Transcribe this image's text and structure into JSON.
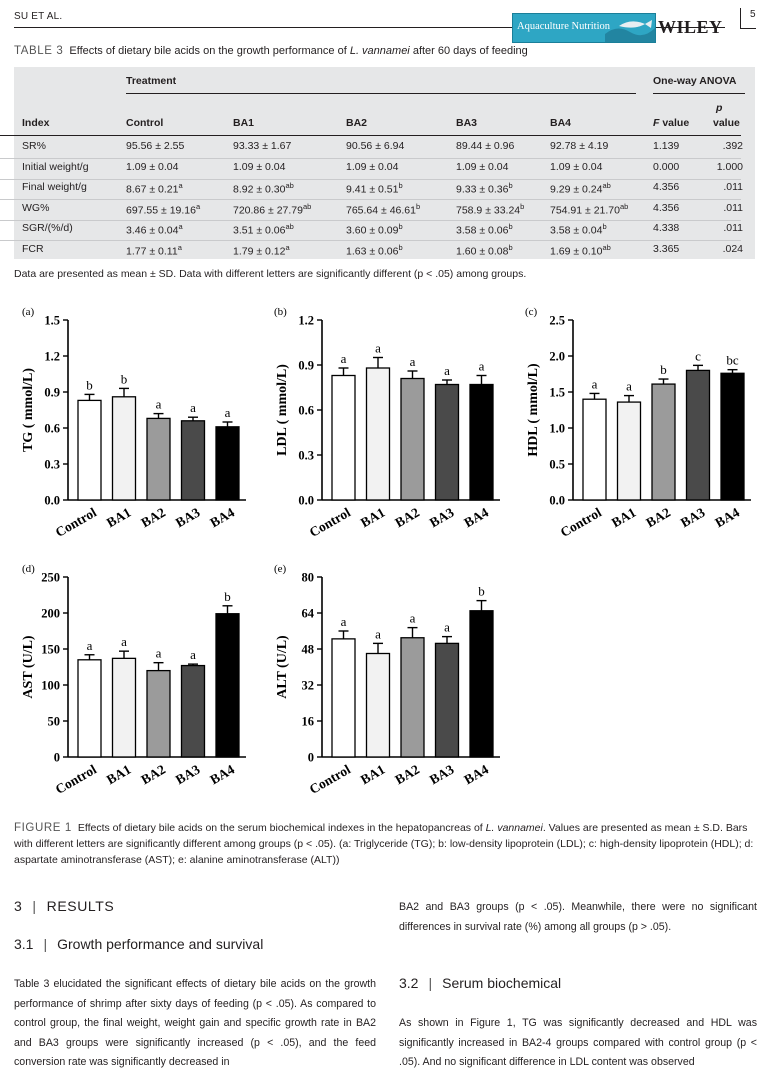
{
  "header": {
    "running_head": "SU ET AL.",
    "journal": "Aquaculture Nutrition",
    "publisher": "WILEY",
    "page": "5"
  },
  "table": {
    "label": "TABLE 3",
    "title": "Effects of dietary bile acids on the growth performance of L. vannamei after 60 days of feeding",
    "group_treatment": "Treatment",
    "group_anova": "One-way ANOVA",
    "columns": [
      "Index",
      "Control",
      "BA1",
      "BA2",
      "BA3",
      "BA4",
      "F value",
      "p value"
    ],
    "rows": [
      {
        "index": "SR%",
        "control": "95.56 ± 2.55",
        "ba1": "93.33 ± 1.67",
        "ba2": "90.56 ± 6.94",
        "ba3": "89.44 ± 0.96",
        "ba4": "92.78 ± 4.19",
        "f": "1.139",
        "p": ".392"
      },
      {
        "index": "Initial weight/g",
        "control": "1.09 ± 0.04",
        "ba1": "1.09 ± 0.04",
        "ba2": "1.09 ± 0.04",
        "ba3": "1.09 ± 0.04",
        "ba4": "1.09 ± 0.04",
        "f": "0.000",
        "p": "1.000"
      },
      {
        "index": "Final weight/g",
        "control": "8.67 ± 0.21",
        "control_sup": "a",
        "ba1": "8.92 ± 0.30",
        "ba1_sup": "ab",
        "ba2": "9.41 ± 0.51",
        "ba2_sup": "b",
        "ba3": "9.33 ± 0.36",
        "ba3_sup": "b",
        "ba4": "9.29 ± 0.24",
        "ba4_sup": "ab",
        "f": "4.356",
        "p": ".011"
      },
      {
        "index": "WG%",
        "control": "697.55 ± 19.16",
        "control_sup": "a",
        "ba1": "720.86 ± 27.79",
        "ba1_sup": "ab",
        "ba2": "765.64 ± 46.61",
        "ba2_sup": "b",
        "ba3": "758.9 ± 33.24",
        "ba3_sup": "b",
        "ba4": "754.91 ± 21.70",
        "ba4_sup": "ab",
        "f": "4.356",
        "p": ".011"
      },
      {
        "index": "SGR/(%/d)",
        "control": "3.46 ± 0.04",
        "control_sup": "a",
        "ba1": "3.51 ± 0.06",
        "ba1_sup": "ab",
        "ba2": "3.60 ± 0.09",
        "ba2_sup": "b",
        "ba3": "3.58 ± 0.06",
        "ba3_sup": "b",
        "ba4": "3.58 ± 0.04",
        "ba4_sup": "b",
        "f": "4.338",
        "p": ".011"
      },
      {
        "index": "FCR",
        "control": "1.77 ± 0.11",
        "control_sup": "a",
        "ba1": "1.79 ± 0.12",
        "ba1_sup": "a",
        "ba2": "1.63 ± 0.06",
        "ba2_sup": "b",
        "ba3": "1.60 ± 0.08",
        "ba3_sup": "b",
        "ba4": "1.69 ± 0.10",
        "ba4_sup": "ab",
        "f": "3.365",
        "p": ".024"
      }
    ],
    "note": "Data are presented as mean ± SD. Data with different letters are significantly different (p < .05) among groups."
  },
  "chart_data": [
    {
      "type": "bar",
      "panel": "(a)",
      "categories": [
        "Control",
        "BA1",
        "BA2",
        "BA3",
        "BA4"
      ],
      "values": [
        0.83,
        0.86,
        0.68,
        0.66,
        0.61
      ],
      "errors": [
        0.05,
        0.07,
        0.04,
        0.03,
        0.04
      ],
      "letters": [
        "b",
        "b",
        "a",
        "a",
        "a"
      ],
      "ylabel": "TG ( mmol/L)",
      "ylim": [
        0,
        1.5
      ],
      "yticks": [
        "0.0",
        "0.3",
        "0.6",
        "0.9",
        "1.2",
        "1.5"
      ],
      "colors": [
        "#ffffff",
        "#f2f2f2",
        "#9b9b9b",
        "#4a4a4a",
        "#000000"
      ]
    },
    {
      "type": "bar",
      "panel": "(b)",
      "categories": [
        "Control",
        "BA1",
        "BA2",
        "BA3",
        "BA4"
      ],
      "values": [
        0.83,
        0.88,
        0.81,
        0.77,
        0.77
      ],
      "errors": [
        0.05,
        0.07,
        0.05,
        0.03,
        0.06
      ],
      "letters": [
        "a",
        "a",
        "a",
        "a",
        "a"
      ],
      "ylabel": "LDL ( mmol/L)",
      "ylim": [
        0,
        1.2
      ],
      "yticks": [
        "0.0",
        "0.3",
        "0.6",
        "0.9",
        "1.2"
      ],
      "colors": [
        "#ffffff",
        "#f2f2f2",
        "#9b9b9b",
        "#4a4a4a",
        "#000000"
      ]
    },
    {
      "type": "bar",
      "panel": "(c)",
      "categories": [
        "Control",
        "BA1",
        "BA2",
        "BA3",
        "BA4"
      ],
      "values": [
        1.4,
        1.36,
        1.61,
        1.8,
        1.76
      ],
      "errors": [
        0.08,
        0.09,
        0.07,
        0.07,
        0.05
      ],
      "letters": [
        "a",
        "a",
        "b",
        "c",
        "bc"
      ],
      "ylabel": "HDL ( mmol/L)",
      "ylim": [
        0,
        2.5
      ],
      "yticks": [
        "0.0",
        "0.5",
        "1.0",
        "1.5",
        "2.0",
        "2.5"
      ],
      "colors": [
        "#ffffff",
        "#f2f2f2",
        "#9b9b9b",
        "#4a4a4a",
        "#000000"
      ]
    },
    {
      "type": "bar",
      "panel": "(d)",
      "categories": [
        "Control",
        "BA1",
        "BA2",
        "BA3",
        "BA4"
      ],
      "values": [
        135,
        137,
        120,
        127,
        199
      ],
      "errors": [
        7,
        10,
        11,
        2,
        11
      ],
      "letters": [
        "a",
        "a",
        "a",
        "a",
        "b"
      ],
      "ylabel": "AST (U/L)",
      "ylim": [
        0,
        250
      ],
      "yticks": [
        "0",
        "50",
        "100",
        "150",
        "200",
        "250"
      ],
      "colors": [
        "#ffffff",
        "#f2f2f2",
        "#9b9b9b",
        "#4a4a4a",
        "#000000"
      ]
    },
    {
      "type": "bar",
      "panel": "(e)",
      "categories": [
        "Control",
        "BA1",
        "BA2",
        "BA3",
        "BA4"
      ],
      "values": [
        52.5,
        46,
        53,
        50.5,
        65
      ],
      "errors": [
        3.5,
        4.5,
        4.5,
        3,
        4.5
      ],
      "letters": [
        "a",
        "a",
        "a",
        "a",
        "b"
      ],
      "ylabel": "ALT (U/L)",
      "ylim": [
        0,
        80
      ],
      "yticks": [
        "0",
        "16",
        "32",
        "48",
        "64",
        "80"
      ],
      "colors": [
        "#ffffff",
        "#f2f2f2",
        "#9b9b9b",
        "#4a4a4a",
        "#000000"
      ]
    }
  ],
  "figure": {
    "label": "FIGURE 1",
    "caption": "Effects of dietary bile acids on the serum biochemical indexes in the hepatopancreas of L. vannamei. Values are presented as mean ± S.D. Bars with different letters are significantly different among groups (p < .05). (a: Triglyceride (TG); b: low-density lipoprotein (LDL); c: high-density lipoprotein (HDL); d: aspartate aminotransferase (AST); e: alanine aminotransferase (ALT))"
  },
  "body": {
    "sec3_num": "3",
    "sec3_title": "RESULTS",
    "sec31_num": "3.1",
    "sec31_title": "Growth performance and survival",
    "para31": "Table 3 elucidated the significant effects of dietary bile acids on the growth performance of shrimp after sixty days of feeding (p < .05). As compared to control group, the final weight, weight gain and specific growth rate in BA2 and BA3 groups were significantly increased (p < .05), and the feed conversion rate was significantly decreased in",
    "para31_cont": "BA2 and BA3 groups (p < .05). Meanwhile, there were no significant differences in survival rate (%) among all groups (p > .05).",
    "sec32_num": "3.2",
    "sec32_title": "Serum biochemical",
    "para32": "As shown in Figure 1, TG was significantly decreased and HDL was significantly increased in BA2-4 groups compared with control group (p < .05). And no significant difference in LDL content was observed"
  }
}
